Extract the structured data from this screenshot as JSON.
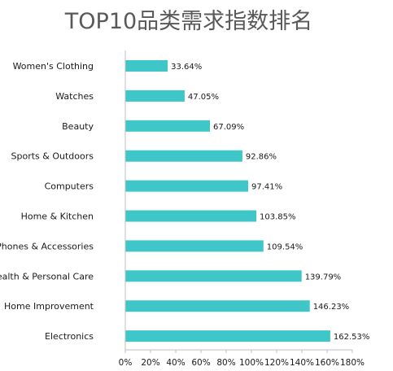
{
  "chart_data": {
    "type": "bar",
    "orientation": "horizontal",
    "title": "TOP10品类需求指数排名",
    "categories": [
      "Women's Clothing",
      "Watches",
      "Beauty",
      "Sports & Outdoors",
      "Computers",
      "Home & Kitchen",
      "Cell Phones & Accessories",
      "Health & Personal Care",
      "Home Improvement",
      "Electronics"
    ],
    "values": [
      33.64,
      47.05,
      67.09,
      92.86,
      97.41,
      103.85,
      109.54,
      139.79,
      146.23,
      162.53
    ],
    "value_labels": [
      "33.64%",
      "47.05%",
      "67.09%",
      "92.86%",
      "97.41%",
      "103.85%",
      "109.54%",
      "139.79%",
      "146.23%",
      "162.53%"
    ],
    "xlim": [
      0,
      180
    ],
    "xticks": [
      "0%",
      "20%",
      "40%",
      "60%",
      "80%",
      "100%",
      "120%",
      "140%",
      "160%",
      "180%"
    ],
    "bar_color": "#3EC6C8",
    "grid": false
  }
}
